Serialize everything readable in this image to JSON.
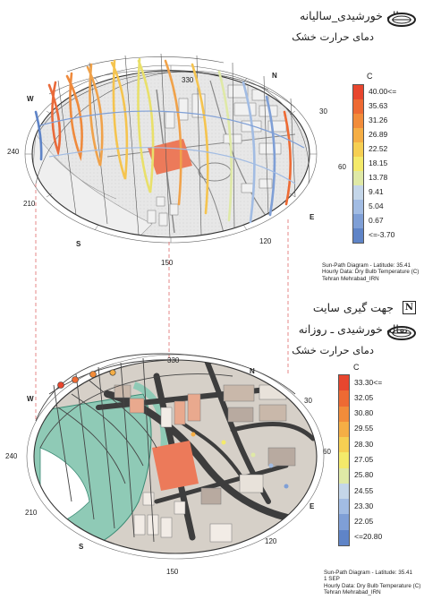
{
  "diagram1": {
    "title": "نقاله خورشیدی_سالیانه",
    "subtitle": "دمای حرارت خشک",
    "legend": {
      "unit": "C",
      "labels": [
        "40.00<=",
        "35.63",
        "31.26",
        "26.89",
        "22.52",
        "18.15",
        "13.78",
        "9.41",
        "5.04",
        "0.67",
        "<=-3.70"
      ],
      "colors": [
        "#e8462e",
        "#ee6a33",
        "#f28c3a",
        "#f5ae45",
        "#f6cf52",
        "#f4ea6a",
        "#dfe9a6",
        "#c4d6e9",
        "#a2bce3",
        "#7f9fd6",
        "#5f84c7"
      ]
    },
    "meta": [
      "Sun-Path Diagram - Latitude: 35.41",
      "Hourly Data: Dry Bulb Temperature (C)",
      "Tehran Mehrabad_IRN"
    ],
    "compass": [
      "330",
      "N",
      "30",
      "60",
      "E",
      "120",
      "150",
      "S",
      "210",
      "240",
      "W"
    ]
  },
  "section": {
    "label": "جهت گیری سایت",
    "north_symbol": "N"
  },
  "diagram2": {
    "title": "نقاله خورشیدی ـ روزانه",
    "subtitle": "دمای حرارت خشک",
    "legend": {
      "unit": "C",
      "labels": [
        "33.30<=",
        "32.05",
        "30.80",
        "29.55",
        "28.30",
        "27.05",
        "25.80",
        "24.55",
        "23.30",
        "22.05",
        "<=20.80"
      ],
      "colors": [
        "#e8462e",
        "#ee6a33",
        "#f28c3a",
        "#f5ae45",
        "#f6cf52",
        "#f4ea6a",
        "#dfe9a6",
        "#c4d6e9",
        "#a2bce3",
        "#7f9fd6",
        "#5f84c7"
      ]
    },
    "meta": [
      "Sun-Path Diagram - Latitude: 35.41",
      "1 SEP",
      "Hourly Data: Dry Bulb Temperature (C)",
      "Tehran Mehrabad_IRN"
    ],
    "compass": [
      "330",
      "N",
      "30",
      "60",
      "E",
      "120",
      "150",
      "S",
      "210",
      "240",
      "W"
    ]
  }
}
